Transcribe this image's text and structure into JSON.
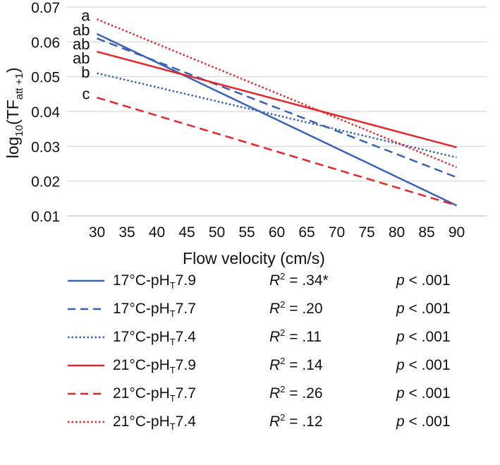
{
  "chart_data": {
    "type": "line",
    "xlabel": "Flow velocity (cm/s)",
    "ylabel": {
      "prefix": "log",
      "log_base": "10",
      "open": "(TF",
      "subscript": "att +1",
      "close": ")"
    },
    "x_ticks": [
      "30",
      "35",
      "40",
      "45",
      "50",
      "55",
      "60",
      "65",
      "70",
      "75",
      "80",
      "85",
      "90"
    ],
    "y_ticks": [
      "0.01",
      "0.02",
      "0.03",
      "0.04",
      "0.05",
      "0.06",
      "0.07"
    ],
    "xlim": [
      25,
      95
    ],
    "ylim": [
      0.01,
      0.07
    ],
    "grid": "horizontal",
    "series": [
      {
        "name": "17°C-pHT7.9",
        "name_parts": [
          "17°C-pH",
          "T",
          "7.9"
        ],
        "color": "#3a62b8",
        "dash": "solid",
        "x": [
          30,
          90
        ],
        "y": [
          0.0623,
          0.013
        ],
        "letter": "ab",
        "r2_value": " = .34*",
        "p_value": " < .001"
      },
      {
        "name": "17°C-pHT7.7",
        "name_parts": [
          "17°C-pH",
          "T",
          "7.7"
        ],
        "color": "#3a62b8",
        "dash": "dashed",
        "x": [
          30,
          90
        ],
        "y": [
          0.061,
          0.0211
        ],
        "letter": "ab",
        "r2_value": " = .20",
        "p_value": " < .001"
      },
      {
        "name": "17°C-pHT7.4",
        "name_parts": [
          "17°C-pH",
          "T",
          "7.4"
        ],
        "color": "#3a62b8",
        "dash": "dotted",
        "x": [
          30,
          90
        ],
        "y": [
          0.051,
          0.0268
        ],
        "letter": "b",
        "r2_value": " = .11",
        "p_value": " < .001"
      },
      {
        "name": "21°C-pHT7.9",
        "name_parts": [
          "21°C-pH",
          "T",
          "7.9"
        ],
        "color": "#e8262a",
        "dash": "solid",
        "x": [
          30,
          90
        ],
        "y": [
          0.0572,
          0.0297
        ],
        "letter": "ab",
        "r2_value": " = .14",
        "p_value": " < .001"
      },
      {
        "name": "21°C-pHT7.7",
        "name_parts": [
          "21°C-pH",
          "T",
          "7.7"
        ],
        "color": "#e8262a",
        "dash": "dashed",
        "x": [
          30,
          90
        ],
        "y": [
          0.044,
          0.013
        ],
        "letter": "c",
        "r2_value": " = .26",
        "p_value": " < .001"
      },
      {
        "name": "21°C-pHT7.4",
        "name_parts": [
          "21°C-pH",
          "T",
          "7.4"
        ],
        "color": "#e8262a",
        "dash": "dotted",
        "x": [
          30,
          90
        ],
        "y": [
          0.0665,
          0.024
        ],
        "letter": "a",
        "r2_value": " = .12",
        "p_value": " < .001"
      }
    ],
    "legend_r2_label": "R",
    "legend_r2_sup": "2",
    "legend_p_label": "p"
  }
}
